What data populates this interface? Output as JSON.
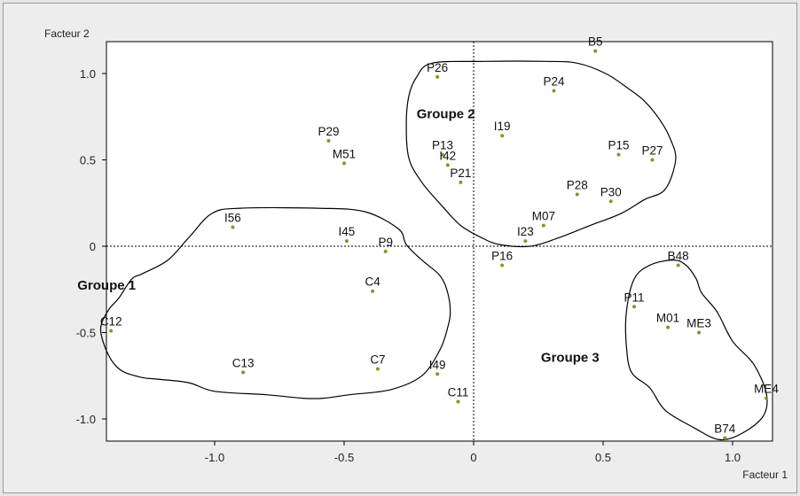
{
  "chart_data": {
    "type": "scatter",
    "xlabel": "Facteur 1",
    "ylabel": "Facteur 2",
    "xlim": [
      -1.42,
      1.15
    ],
    "ylim": [
      -1.14,
      1.15
    ],
    "x_ticks": [
      -1.0,
      -0.5,
      0,
      0.5,
      1.0
    ],
    "x_tick_labels": [
      "-1.0",
      "-0.5",
      "0",
      "0.5",
      "1.0"
    ],
    "y_ticks": [
      1.0,
      0.5,
      0,
      -0.5,
      -1.0
    ],
    "y_tick_labels": [
      "1.0",
      "0.5",
      "0",
      "-0.5",
      "-1.0"
    ],
    "reference_lines": [
      0,
      0
    ],
    "grid": false,
    "point_color": "#7a9a2a",
    "points": [
      {
        "label": "B5",
        "x": 0.47,
        "y": 1.13
      },
      {
        "label": "P26",
        "x": -0.14,
        "y": 0.98
      },
      {
        "label": "P24",
        "x": 0.31,
        "y": 0.9
      },
      {
        "label": "I19",
        "x": 0.11,
        "y": 0.64
      },
      {
        "label": "P29",
        "x": -0.56,
        "y": 0.61
      },
      {
        "label": "P13",
        "x": -0.12,
        "y": 0.53
      },
      {
        "label": "M51",
        "x": -0.5,
        "y": 0.48
      },
      {
        "label": "I42",
        "x": -0.1,
        "y": 0.47
      },
      {
        "label": "P15",
        "x": 0.56,
        "y": 0.53
      },
      {
        "label": "P27",
        "x": 0.69,
        "y": 0.5
      },
      {
        "label": "P21",
        "x": -0.05,
        "y": 0.37
      },
      {
        "label": "P28",
        "x": 0.4,
        "y": 0.3
      },
      {
        "label": "P30",
        "x": 0.53,
        "y": 0.26
      },
      {
        "label": "M07",
        "x": 0.27,
        "y": 0.12
      },
      {
        "label": "I56",
        "x": -0.93,
        "y": 0.11
      },
      {
        "label": "I23",
        "x": 0.2,
        "y": 0.03
      },
      {
        "label": "I45",
        "x": -0.49,
        "y": 0.03
      },
      {
        "label": "P9",
        "x": -0.34,
        "y": -0.03
      },
      {
        "label": "P16",
        "x": 0.11,
        "y": -0.11
      },
      {
        "label": "B48",
        "x": 0.79,
        "y": -0.11
      },
      {
        "label": "C4",
        "x": -0.39,
        "y": -0.26
      },
      {
        "label": "P11",
        "x": 0.62,
        "y": -0.35
      },
      {
        "label": "M01",
        "x": 0.75,
        "y": -0.47
      },
      {
        "label": "ME3",
        "x": 0.87,
        "y": -0.5
      },
      {
        "label": "C12",
        "x": -1.4,
        "y": -0.49
      },
      {
        "label": "C7",
        "x": -0.37,
        "y": -0.71
      },
      {
        "label": "C13",
        "x": -0.89,
        "y": -0.73
      },
      {
        "label": "I49",
        "x": -0.14,
        "y": -0.74
      },
      {
        "label": "C11",
        "x": -0.06,
        "y": -0.9
      },
      {
        "label": "ME4",
        "x": 1.13,
        "y": -0.88
      },
      {
        "label": "B74",
        "x": 0.97,
        "y": -1.11
      }
    ],
    "groups": [
      {
        "label": "Groupe 1",
        "outline": [
          [
            -1.01,
            0.19
          ],
          [
            -0.9,
            0.22
          ],
          [
            -0.6,
            0.22
          ],
          [
            -0.42,
            0.2
          ],
          [
            -0.29,
            0.1
          ],
          [
            -0.26,
            0.01
          ],
          [
            -0.2,
            -0.08
          ],
          [
            -0.13,
            -0.17
          ],
          [
            -0.1,
            -0.27
          ],
          [
            -0.09,
            -0.38
          ],
          [
            -0.1,
            -0.47
          ],
          [
            -0.13,
            -0.6
          ],
          [
            -0.2,
            -0.75
          ],
          [
            -0.32,
            -0.83
          ],
          [
            -0.48,
            -0.86
          ],
          [
            -0.58,
            -0.88
          ],
          [
            -0.66,
            -0.88
          ],
          [
            -0.8,
            -0.86
          ],
          [
            -1.0,
            -0.84
          ],
          [
            -1.1,
            -0.79
          ],
          [
            -1.22,
            -0.77
          ],
          [
            -1.28,
            -0.76
          ],
          [
            -1.36,
            -0.72
          ],
          [
            -1.41,
            -0.63
          ],
          [
            -1.44,
            -0.48
          ],
          [
            -1.41,
            -0.37
          ],
          [
            -1.37,
            -0.3
          ],
          [
            -1.32,
            -0.19
          ],
          [
            -1.28,
            -0.16
          ],
          [
            -1.18,
            -0.08
          ],
          [
            -1.1,
            0.05
          ],
          [
            -1.01,
            0.19
          ]
        ]
      },
      {
        "label": "Groupe 2",
        "outline": [
          [
            -0.16,
            1.06
          ],
          [
            0.04,
            1.07
          ],
          [
            0.28,
            1.07
          ],
          [
            0.4,
            1.06
          ],
          [
            0.51,
            1.0
          ],
          [
            0.6,
            0.91
          ],
          [
            0.66,
            0.84
          ],
          [
            0.72,
            0.73
          ],
          [
            0.76,
            0.62
          ],
          [
            0.78,
            0.5
          ],
          [
            0.74,
            0.33
          ],
          [
            0.66,
            0.27
          ],
          [
            0.57,
            0.19
          ],
          [
            0.45,
            0.12
          ],
          [
            0.33,
            0.05
          ],
          [
            0.22,
            0.0
          ],
          [
            0.1,
            0.01
          ],
          [
            0.03,
            0.05
          ],
          [
            -0.05,
            0.12
          ],
          [
            -0.12,
            0.23
          ],
          [
            -0.2,
            0.37
          ],
          [
            -0.25,
            0.51
          ],
          [
            -0.26,
            0.71
          ],
          [
            -0.25,
            0.87
          ],
          [
            -0.22,
            0.98
          ],
          [
            -0.16,
            1.06
          ]
        ]
      },
      {
        "label": "Groupe 3",
        "outline": [
          [
            0.77,
            -0.08
          ],
          [
            0.82,
            -0.11
          ],
          [
            0.86,
            -0.19
          ],
          [
            0.88,
            -0.27
          ],
          [
            0.94,
            -0.38
          ],
          [
            1.0,
            -0.55
          ],
          [
            1.08,
            -0.68
          ],
          [
            1.13,
            -0.85
          ],
          [
            1.12,
            -0.98
          ],
          [
            1.04,
            -1.08
          ],
          [
            0.95,
            -1.12
          ],
          [
            0.85,
            -1.05
          ],
          [
            0.74,
            -0.95
          ],
          [
            0.68,
            -0.82
          ],
          [
            0.61,
            -0.73
          ],
          [
            0.59,
            -0.58
          ],
          [
            0.59,
            -0.38
          ],
          [
            0.62,
            -0.19
          ],
          [
            0.68,
            -0.11
          ],
          [
            0.77,
            -0.08
          ]
        ]
      }
    ],
    "group_labels": [
      {
        "label": "Groupe 1",
        "x": -1.53,
        "y": -0.25
      },
      {
        "label": "Groupe 2",
        "x": -0.22,
        "y": 0.74
      },
      {
        "label": "Groupe 3",
        "x": 0.26,
        "y": -0.67
      }
    ]
  }
}
